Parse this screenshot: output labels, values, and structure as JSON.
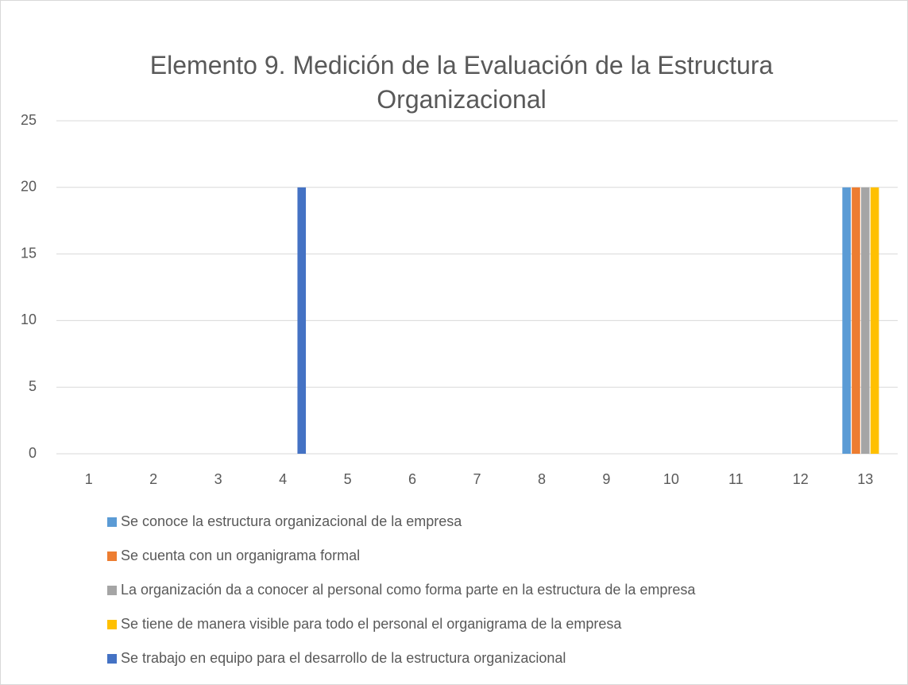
{
  "chart_data": {
    "type": "bar",
    "title": "Elemento 9. Medición de la Evaluación de la Estructura Organizacional",
    "categories": [
      "1",
      "2",
      "3",
      "4",
      "5",
      "6",
      "7",
      "8",
      "9",
      "10",
      "11",
      "12",
      "13"
    ],
    "series": [
      {
        "name": "Se conoce la estructura organizacional de la empresa",
        "color": "#5b9bd5",
        "values": [
          0,
          0,
          0,
          0,
          0,
          0,
          0,
          0,
          0,
          0,
          0,
          0,
          20
        ]
      },
      {
        "name": "Se cuenta con un organigrama formal",
        "color": "#ed7d31",
        "values": [
          0,
          0,
          0,
          0,
          0,
          0,
          0,
          0,
          0,
          0,
          0,
          0,
          20
        ]
      },
      {
        "name": "La organización da a conocer al personal como forma parte en la estructura de la empresa",
        "color": "#a5a5a5",
        "values": [
          0,
          0,
          0,
          0,
          0,
          0,
          0,
          0,
          0,
          0,
          0,
          0,
          20
        ]
      },
      {
        "name": "Se tiene de manera visible para todo el personal el organigrama de la empresa",
        "color": "#ffc000",
        "values": [
          0,
          0,
          0,
          0,
          0,
          0,
          0,
          0,
          0,
          0,
          0,
          0,
          20
        ]
      },
      {
        "name": "Se trabajo en equipo para el desarrollo de la estructura organizacional",
        "color": "#4472c4",
        "values": [
          0,
          0,
          0,
          20,
          0,
          0,
          0,
          0,
          0,
          0,
          0,
          0,
          0
        ]
      }
    ],
    "ylim": [
      0,
      25
    ],
    "yticks": [
      0,
      5,
      10,
      15,
      20,
      25
    ],
    "grid": true,
    "legend": "bottom"
  }
}
